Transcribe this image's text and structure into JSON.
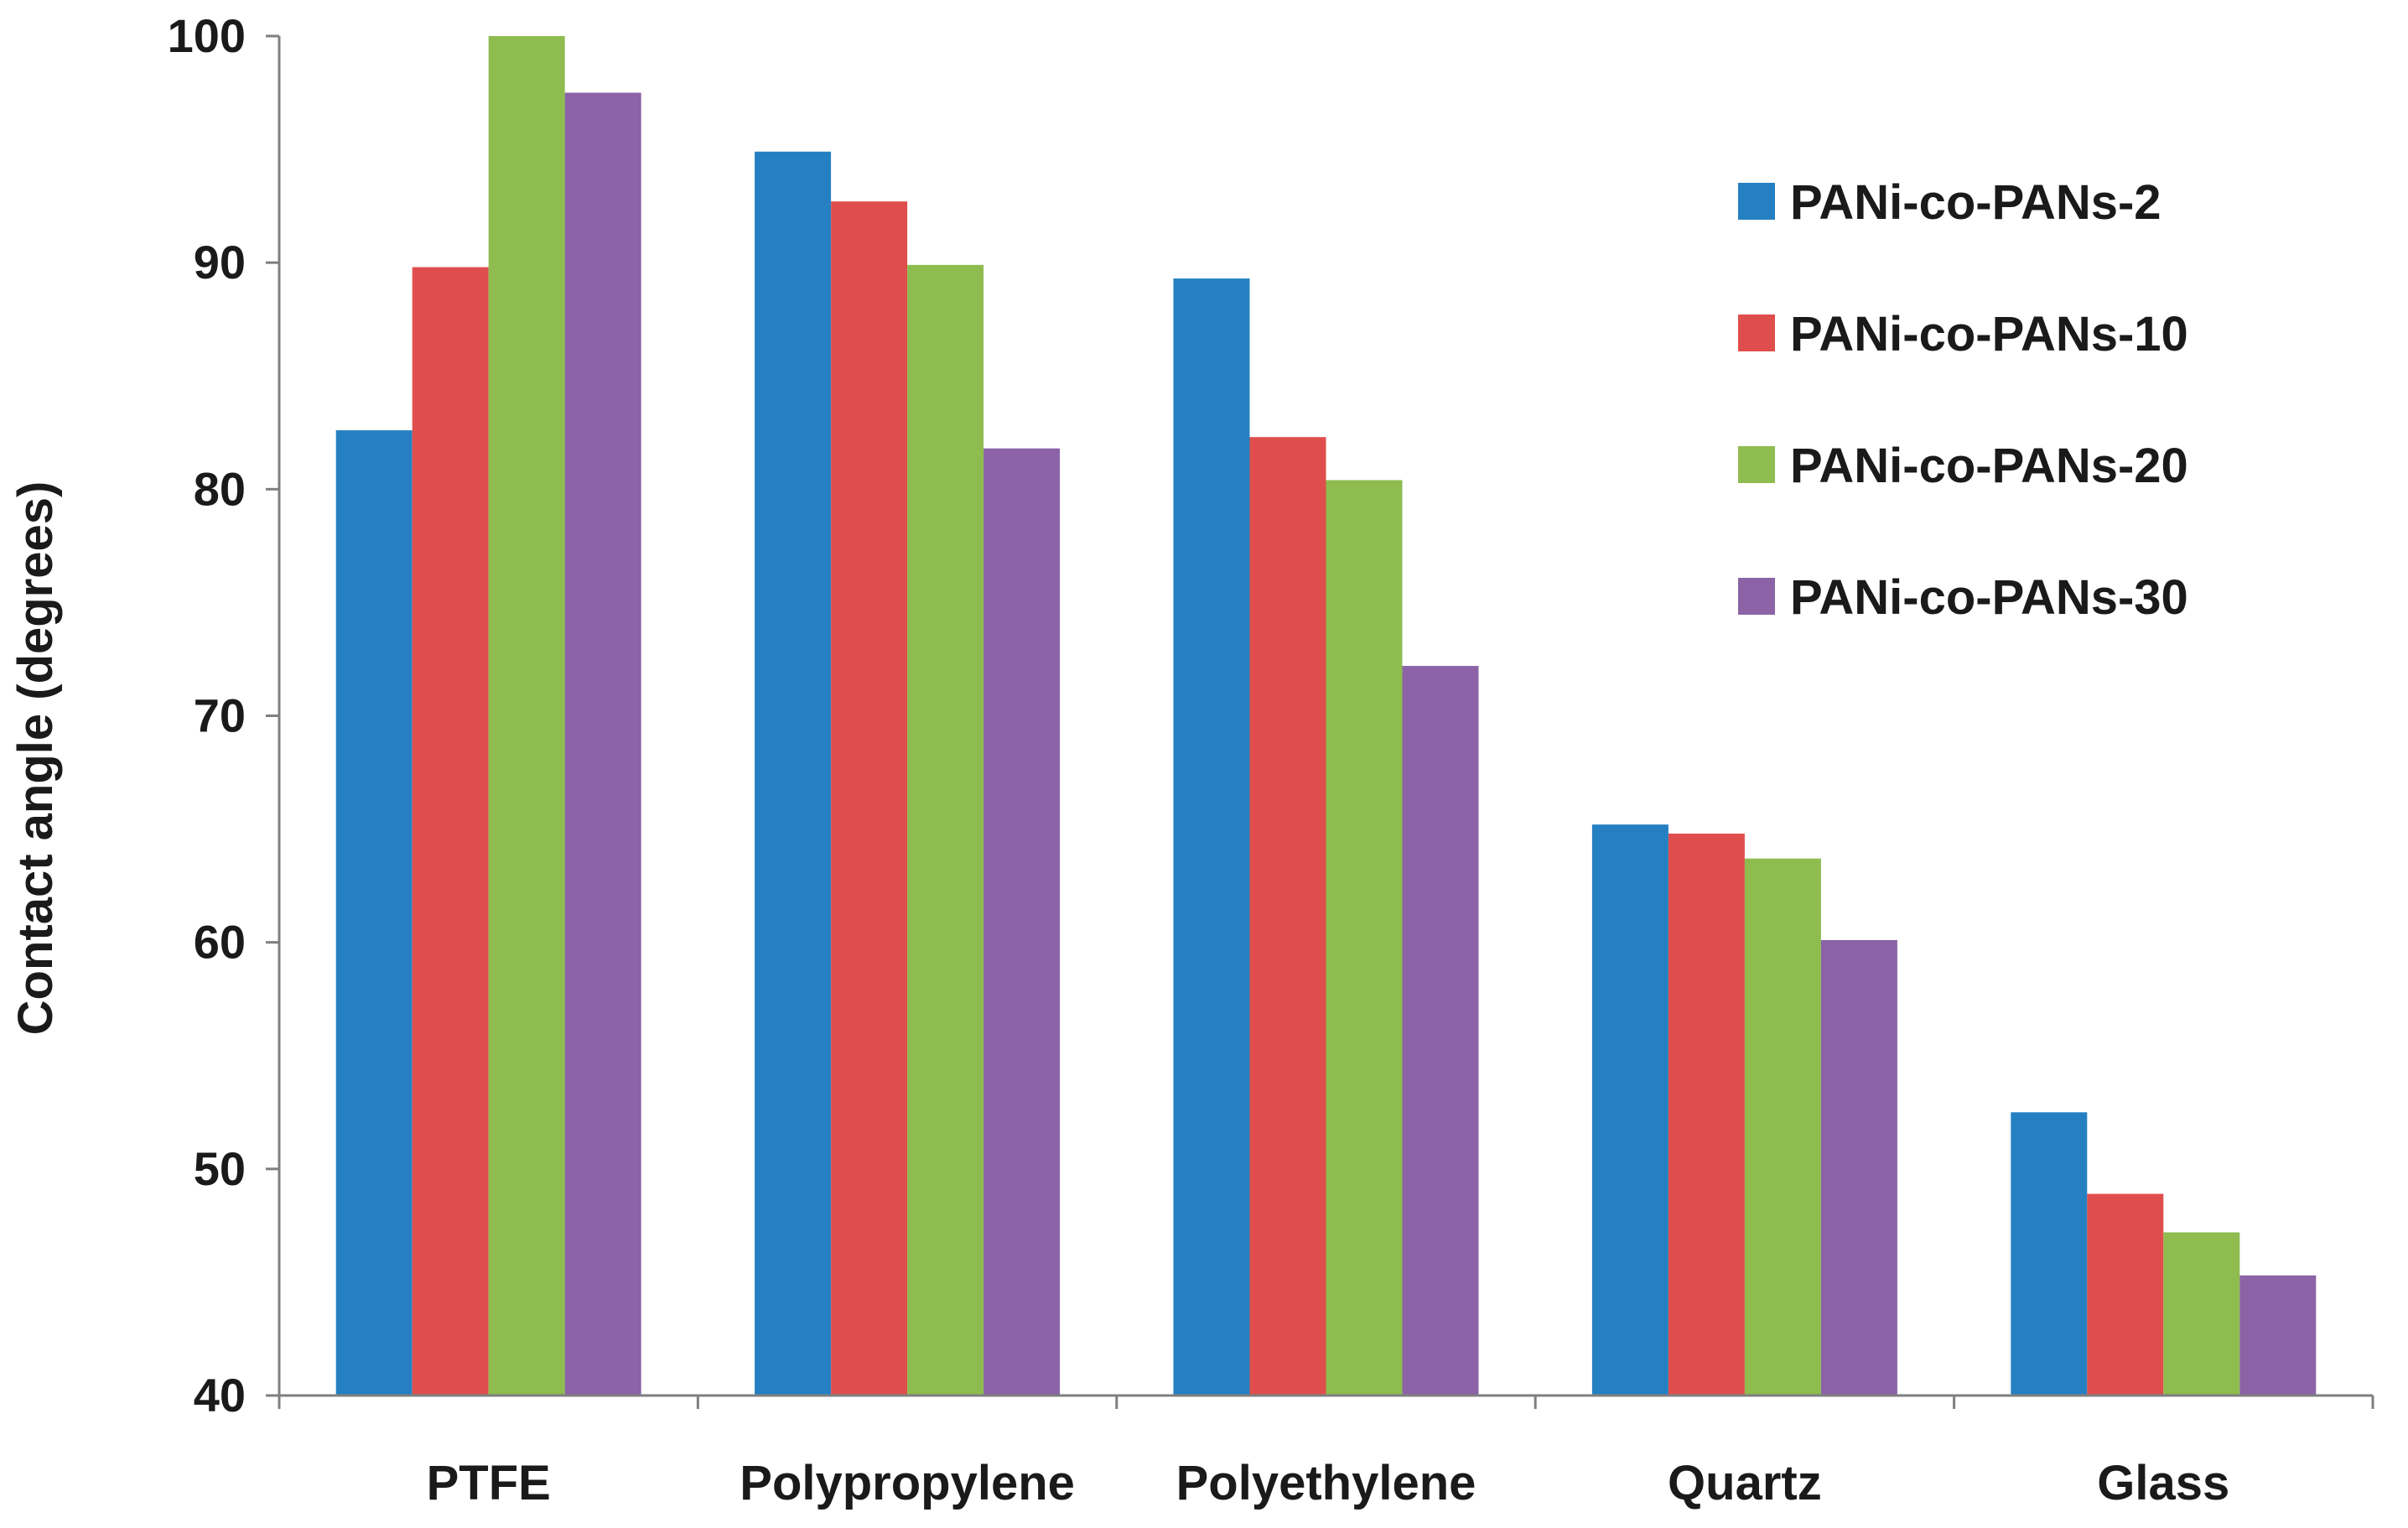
{
  "chart_data": {
    "type": "bar",
    "title": "",
    "xlabel": "",
    "ylabel": "Contact angle (degrees)",
    "ylim": [
      40,
      100
    ],
    "yticks": [
      "40",
      "50",
      "60",
      "70",
      "80",
      "90",
      "100"
    ],
    "categories": [
      "PTFE",
      "Polypropylene",
      "Polyethylene",
      "Quartz",
      "Glass"
    ],
    "series": [
      {
        "name": "PANi-co-PANs-2",
        "color": "#2580C2",
        "values": [
          82.6,
          94.9,
          89.3,
          65.2,
          52.5
        ]
      },
      {
        "name": "PANi-co-PANs-10",
        "color": "#DF4E4C",
        "values": [
          89.8,
          92.7,
          82.3,
          64.8,
          48.9
        ]
      },
      {
        "name": "PANi-co-PANs-20",
        "color": "#8EBC4F",
        "values": [
          100.0,
          89.9,
          80.4,
          63.7,
          47.2
        ]
      },
      {
        "name": "PANi-co-PANs-30",
        "color": "#8B63A6",
        "values": [
          97.5,
          81.8,
          72.2,
          60.1,
          45.3
        ]
      }
    ],
    "legend_position": "top-right",
    "grid": false
  }
}
